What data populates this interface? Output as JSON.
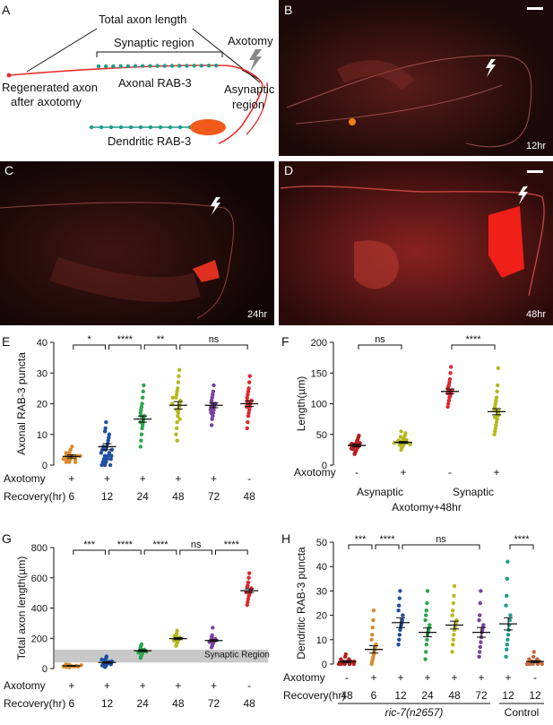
{
  "panel_letters": {
    "A": "A",
    "B": "B",
    "C": "C",
    "D": "D",
    "E": "E",
    "F": "F",
    "G": "G",
    "H": "H"
  },
  "diagram": {
    "total_axon_length": "Total axon length",
    "synaptic_region": "Synaptic region",
    "axotomy": "Axotomy",
    "regenerated_axon_l1": "Regenerated axon",
    "regenerated_axon_l2": "after axotomy",
    "axonal_rab3": "Axonal RAB-3",
    "asynaptic_l1": "Asynaptic",
    "asynaptic_l2": "region",
    "dendritic_rab3": "Dendritic RAB-3"
  },
  "images": {
    "B": "12hr",
    "C": "24hr",
    "D": "48hr"
  },
  "colors": {
    "dark_red": "#b41e1e",
    "orange": "#d98a2b",
    "blue": "#1f4fa0",
    "green": "#2aa64a",
    "yellow": "#b5b81e",
    "purple": "#7b3f9e",
    "red": "#e1252f",
    "brown": "#c46a3c",
    "teal": "#1d9c8a"
  },
  "chart_data": [
    {
      "id": "E",
      "type": "scatter",
      "ylabel": "Axonal RAB-3 puncta",
      "ylim": [
        0,
        40
      ],
      "yticks": [
        "0",
        "10",
        "20",
        "30",
        "40"
      ],
      "row_labels": [
        "Axotomy",
        "Recovery(hr)"
      ],
      "groups": [
        {
          "axotomy": "+",
          "recovery": "6",
          "mean": 2.8,
          "sem": 0.5,
          "color": "orange",
          "values": [
            1,
            1,
            2,
            2,
            2,
            3,
            3,
            3,
            3,
            4,
            4,
            5,
            2,
            1,
            6,
            3
          ]
        },
        {
          "axotomy": "+",
          "recovery": "12",
          "mean": 6,
          "sem": 1,
          "color": "blue",
          "values": [
            0,
            0,
            1,
            1,
            2,
            2,
            3,
            3,
            4,
            4,
            5,
            5,
            6,
            6,
            7,
            8,
            9,
            10,
            11,
            12,
            14,
            0,
            2,
            3,
            5
          ]
        },
        {
          "axotomy": "+",
          "recovery": "24",
          "mean": 15,
          "sem": 1,
          "color": "green",
          "values": [
            6,
            8,
            10,
            12,
            13,
            14,
            15,
            16,
            16,
            17,
            18,
            19,
            20,
            22,
            24,
            26,
            14
          ]
        },
        {
          "axotomy": "+",
          "recovery": "48",
          "mean": 19.5,
          "sem": 1.2,
          "color": "yellow",
          "values": [
            10,
            12,
            14,
            16,
            17,
            18,
            19,
            20,
            21,
            22,
            23,
            24,
            25,
            27,
            29,
            31,
            15,
            18,
            20,
            22,
            8
          ]
        },
        {
          "axotomy": "+",
          "recovery": "72",
          "mean": 19.5,
          "sem": 0.8,
          "color": "purple",
          "values": [
            13,
            15,
            16,
            17,
            18,
            19,
            19,
            20,
            20,
            21,
            22,
            23,
            24,
            26,
            18,
            17,
            21
          ]
        },
        {
          "axotomy": "-",
          "recovery": "48",
          "mean": 20,
          "sem": 0.9,
          "color": "red",
          "values": [
            12,
            14,
            16,
            17,
            18,
            19,
            20,
            20,
            21,
            22,
            23,
            24,
            25,
            27,
            29,
            19,
            21
          ]
        }
      ],
      "comparisons": [
        {
          "from": 0,
          "to": 1,
          "label": "*"
        },
        {
          "from": 1,
          "to": 2,
          "label": "****"
        },
        {
          "from": 2,
          "to": 3,
          "label": "**"
        },
        {
          "from": 3,
          "to": 5,
          "label": "ns"
        }
      ]
    },
    {
      "id": "F",
      "type": "scatter",
      "ylabel": "Length(µm)",
      "ylim": [
        0,
        200
      ],
      "yticks": [
        "0",
        "50",
        "100",
        "150",
        "200"
      ],
      "row_labels": [
        "Axotomy"
      ],
      "category_labels": [
        "Asynaptic",
        "Synaptic"
      ],
      "footer": "Axotomy+48hr",
      "groups": [
        {
          "axotomy": "-",
          "mean": 32,
          "sem": 2,
          "color": "dark_red",
          "values": [
            18,
            20,
            22,
            24,
            26,
            28,
            30,
            31,
            32,
            33,
            34,
            35,
            36,
            38,
            40,
            42,
            45,
            48,
            30,
            27
          ]
        },
        {
          "axotomy": "+",
          "mean": 37,
          "sem": 1.5,
          "color": "yellow",
          "values": [
            25,
            28,
            30,
            32,
            33,
            34,
            35,
            36,
            37,
            38,
            39,
            40,
            41,
            42,
            44,
            46,
            48,
            52,
            55,
            36,
            38,
            34
          ]
        },
        {
          "axotomy": "-",
          "mean": 120,
          "sem": 4,
          "color": "red",
          "values": [
            95,
            100,
            105,
            110,
            112,
            115,
            118,
            120,
            122,
            125,
            128,
            130,
            135,
            140,
            150,
            160,
            117,
            123
          ]
        },
        {
          "axotomy": "+",
          "mean": 87,
          "sem": 5,
          "color": "yellow",
          "values": [
            50,
            55,
            60,
            65,
            70,
            75,
            80,
            85,
            88,
            90,
            95,
            100,
            105,
            110,
            120,
            130,
            158,
            82,
            92,
            78
          ]
        }
      ],
      "comparisons": [
        {
          "from": 0,
          "to": 1,
          "label": "ns"
        },
        {
          "from": 2,
          "to": 3,
          "label": "****"
        }
      ]
    },
    {
      "id": "G",
      "type": "scatter",
      "ylabel": "Total axon length(µm)",
      "ylim": [
        0,
        800
      ],
      "yticks": [
        "0",
        "200",
        "400",
        "600",
        "800"
      ],
      "row_labels": [
        "Axotomy",
        "Recovery(hr)"
      ],
      "band": {
        "label": "Synaptic Region",
        "range": [
          40,
          125
        ]
      },
      "groups": [
        {
          "axotomy": "+",
          "recovery": "6",
          "mean": 18,
          "sem": 3,
          "color": "orange",
          "values": [
            8,
            10,
            12,
            14,
            15,
            16,
            18,
            20,
            22,
            25,
            28,
            12
          ]
        },
        {
          "axotomy": "+",
          "recovery": "12",
          "mean": 40,
          "sem": 5,
          "color": "blue",
          "values": [
            10,
            15,
            20,
            25,
            30,
            35,
            40,
            45,
            50,
            55,
            60,
            70,
            80,
            28,
            38,
            48
          ]
        },
        {
          "axotomy": "+",
          "recovery": "24",
          "mean": 118,
          "sem": 6,
          "color": "green",
          "values": [
            70,
            80,
            90,
            100,
            110,
            115,
            120,
            125,
            130,
            140,
            150,
            160,
            105,
            112
          ]
        },
        {
          "axotomy": "+",
          "recovery": "48",
          "mean": 198,
          "sem": 7,
          "color": "yellow",
          "values": [
            150,
            160,
            170,
            180,
            190,
            195,
            200,
            205,
            210,
            220,
            230,
            250,
            185,
            215
          ]
        },
        {
          "axotomy": "+",
          "recovery": "72",
          "mean": 185,
          "sem": 6,
          "color": "purple",
          "values": [
            140,
            150,
            160,
            170,
            180,
            185,
            190,
            195,
            200,
            210,
            220,
            270,
            175
          ]
        },
        {
          "axotomy": "-",
          "mean": 515,
          "sem": 12,
          "color": "red",
          "recovery": "48",
          "values": [
            420,
            440,
            460,
            480,
            490,
            500,
            510,
            520,
            530,
            540,
            550,
            570,
            600,
            630,
            505
          ]
        }
      ],
      "comparisons": [
        {
          "from": 0,
          "to": 1,
          "label": "***"
        },
        {
          "from": 1,
          "to": 2,
          "label": "****"
        },
        {
          "from": 2,
          "to": 3,
          "label": "****"
        },
        {
          "from": 3,
          "to": 4,
          "label": "ns"
        },
        {
          "from": 4,
          "to": 5,
          "label": "****"
        }
      ]
    },
    {
      "id": "H",
      "type": "scatter",
      "ylabel": "Dendritic RAB-3 puncta",
      "ylim": [
        0,
        50
      ],
      "yticks": [
        "0",
        "10",
        "20",
        "30",
        "40",
        "50"
      ],
      "row_labels": [
        "Axotomy",
        "Recovery(hr)"
      ],
      "group_label": "ric-7(n2657)",
      "control_label": "Control",
      "groups": [
        {
          "axotomy": "-",
          "recovery": "48",
          "mean": 1,
          "sem": 0.4,
          "color": "dark_red",
          "values": [
            0,
            0,
            0,
            0,
            1,
            1,
            1,
            1,
            2,
            2,
            3,
            4,
            0,
            1
          ]
        },
        {
          "axotomy": "+",
          "recovery": "6",
          "mean": 6,
          "sem": 1.5,
          "color": "orange",
          "values": [
            0,
            1,
            2,
            3,
            4,
            5,
            6,
            7,
            8,
            10,
            12,
            15,
            18,
            22
          ]
        },
        {
          "axotomy": "+",
          "recovery": "12",
          "mean": 17,
          "sem": 2,
          "color": "blue",
          "values": [
            8,
            10,
            12,
            14,
            15,
            16,
            17,
            18,
            20,
            22,
            24,
            27,
            30
          ]
        },
        {
          "axotomy": "+",
          "recovery": "24",
          "mean": 13,
          "sem": 1.8,
          "color": "green",
          "values": [
            2,
            5,
            8,
            10,
            12,
            13,
            14,
            15,
            16,
            18,
            20,
            22,
            25,
            30
          ]
        },
        {
          "axotomy": "+",
          "recovery": "48",
          "mean": 16,
          "sem": 1.6,
          "color": "yellow",
          "values": [
            5,
            8,
            10,
            12,
            14,
            15,
            16,
            17,
            18,
            20,
            22,
            25,
            28,
            32
          ]
        },
        {
          "axotomy": "+",
          "recovery": "72",
          "mean": 13,
          "sem": 2,
          "color": "purple",
          "values": [
            3,
            5,
            7,
            9,
            11,
            13,
            14,
            15,
            16,
            18,
            20,
            25,
            30
          ]
        },
        {
          "axotomy": "+",
          "recovery": "12",
          "mean": 16.5,
          "sem": 2.5,
          "color": "teal",
          "values": [
            3,
            6,
            8,
            10,
            12,
            14,
            16,
            18,
            20,
            24,
            28,
            35,
            42
          ]
        },
        {
          "axotomy": "-",
          "recovery": "12",
          "mean": 1,
          "sem": 0.4,
          "color": "brown",
          "values": [
            0,
            0,
            0,
            0,
            1,
            1,
            1,
            1,
            2,
            2,
            3,
            5,
            0
          ]
        }
      ],
      "comparisons": [
        {
          "from": 0,
          "to": 1,
          "label": "***"
        },
        {
          "from": 1,
          "to": 2,
          "label": "****"
        },
        {
          "from": 2,
          "to": 5,
          "label": "ns"
        },
        {
          "from": 6,
          "to": 7,
          "label": "****"
        }
      ]
    }
  ]
}
